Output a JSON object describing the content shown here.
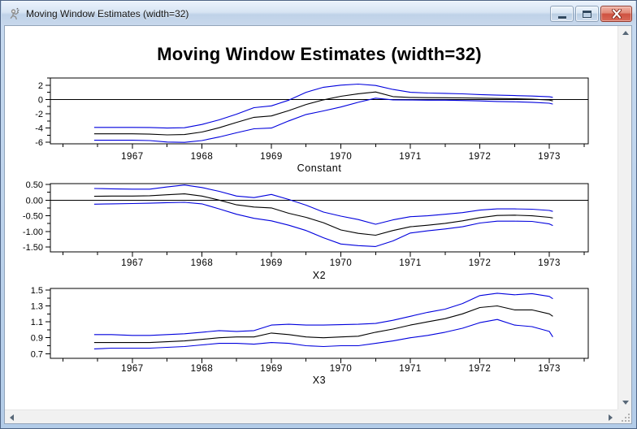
{
  "window": {
    "title": "Moving Window Estimates (width=32)",
    "icon": "app-person-icon",
    "buttons": [
      "minimize",
      "maximize",
      "close"
    ]
  },
  "page": {
    "title": "Moving Window Estimates (width=32)"
  },
  "colors": {
    "band_line": "#0000dd",
    "estimate_line": "#000000",
    "frame_blue": "#bdd6f0"
  },
  "chart_data": [
    {
      "type": "line",
      "xlabel": "Constant",
      "x_range": [
        1965.82,
        1973.56
      ],
      "y_range": [
        -6.2,
        3.0
      ],
      "x_major_ticks": [
        1967,
        1968,
        1969,
        1970,
        1971,
        1972,
        1973
      ],
      "x_minor_step": 0.5,
      "y_tick_values": [
        2,
        0,
        -2,
        -4,
        -6
      ],
      "y_tick_labels": [
        "2",
        "0",
        "-2",
        "-4",
        "-6"
      ],
      "y_minor_step": 1,
      "ref_line": 0,
      "legend": "none",
      "grid": false,
      "x": [
        1966.45,
        1966.7,
        1967,
        1967.25,
        1967.5,
        1967.75,
        1968,
        1968.25,
        1968.5,
        1968.75,
        1969,
        1969.25,
        1969.5,
        1969.75,
        1970,
        1970.25,
        1970.5,
        1970.75,
        1971,
        1971.25,
        1971.5,
        1971.75,
        1972,
        1972.25,
        1972.5,
        1972.75,
        1973,
        1973.05
      ],
      "series": [
        {
          "name": "upper-band",
          "color": "#0000dd",
          "values": [
            -3.9,
            -3.9,
            -3.9,
            -3.92,
            -4.0,
            -3.95,
            -3.5,
            -2.85,
            -2.05,
            -1.15,
            -0.9,
            -0.1,
            1.0,
            1.7,
            2.0,
            2.15,
            1.95,
            1.4,
            1.0,
            0.9,
            0.85,
            0.78,
            0.68,
            0.6,
            0.55,
            0.48,
            0.38,
            0.3
          ]
        },
        {
          "name": "estimate",
          "color": "#000000",
          "values": [
            -4.8,
            -4.8,
            -4.8,
            -4.85,
            -4.95,
            -4.9,
            -4.55,
            -3.95,
            -3.2,
            -2.5,
            -2.3,
            -1.55,
            -0.7,
            -0.05,
            0.45,
            0.8,
            1.05,
            0.4,
            0.28,
            0.25,
            0.24,
            0.22,
            0.18,
            0.14,
            0.1,
            0.04,
            -0.08,
            -0.2
          ]
        },
        {
          "name": "lower-band",
          "color": "#0000dd",
          "values": [
            -5.7,
            -5.7,
            -5.7,
            -5.75,
            -5.95,
            -6.0,
            -5.75,
            -5.25,
            -4.65,
            -4.1,
            -4.0,
            -3.0,
            -2.1,
            -1.6,
            -1.05,
            -0.4,
            0.18,
            -0.05,
            -0.08,
            -0.1,
            -0.1,
            -0.15,
            -0.2,
            -0.28,
            -0.33,
            -0.4,
            -0.52,
            -0.65
          ]
        }
      ]
    },
    {
      "type": "line",
      "xlabel": "X2",
      "x_range": [
        1965.82,
        1973.56
      ],
      "y_range": [
        -1.65,
        0.525
      ],
      "x_major_ticks": [
        1967,
        1968,
        1969,
        1970,
        1971,
        1972,
        1973
      ],
      "x_minor_step": 0.5,
      "y_tick_values": [
        0.5,
        0,
        -0.5,
        -1,
        -1.5
      ],
      "y_tick_labels": [
        "0.50",
        "0.00",
        "-0.50",
        "-1.00",
        "-1.50"
      ],
      "y_minor_step": 0.25,
      "ref_line": 0,
      "legend": "none",
      "grid": false,
      "x": [
        1966.45,
        1966.7,
        1967,
        1967.25,
        1967.5,
        1967.75,
        1968,
        1968.25,
        1968.5,
        1968.75,
        1969,
        1969.25,
        1969.5,
        1969.75,
        1970,
        1970.25,
        1970.5,
        1970.75,
        1971,
        1971.25,
        1971.5,
        1971.75,
        1972,
        1972.25,
        1972.5,
        1972.75,
        1973,
        1973.05
      ],
      "series": [
        {
          "name": "upper-band",
          "color": "#0000dd",
          "values": [
            0.37,
            0.36,
            0.35,
            0.35,
            0.42,
            0.48,
            0.4,
            0.28,
            0.13,
            0.08,
            0.18,
            0.02,
            -0.16,
            -0.38,
            -0.51,
            -0.62,
            -0.77,
            -0.63,
            -0.53,
            -0.5,
            -0.45,
            -0.4,
            -0.32,
            -0.28,
            -0.28,
            -0.29,
            -0.33,
            -0.36
          ]
        },
        {
          "name": "estimate",
          "color": "#000000",
          "values": [
            0.12,
            0.13,
            0.13,
            0.14,
            0.17,
            0.2,
            0.13,
            0.0,
            -0.15,
            -0.22,
            -0.25,
            -0.42,
            -0.55,
            -0.72,
            -0.95,
            -1.06,
            -1.12,
            -0.97,
            -0.85,
            -0.8,
            -0.74,
            -0.66,
            -0.56,
            -0.49,
            -0.48,
            -0.5,
            -0.55,
            -0.57
          ]
        },
        {
          "name": "lower-band",
          "color": "#0000dd",
          "values": [
            -0.13,
            -0.12,
            -0.11,
            -0.1,
            -0.08,
            -0.07,
            -0.12,
            -0.28,
            -0.45,
            -0.58,
            -0.66,
            -0.8,
            -0.97,
            -1.2,
            -1.4,
            -1.45,
            -1.48,
            -1.3,
            -1.05,
            -0.98,
            -0.92,
            -0.85,
            -0.73,
            -0.67,
            -0.67,
            -0.68,
            -0.76,
            -0.81
          ]
        }
      ]
    },
    {
      "type": "line",
      "xlabel": "X3",
      "x_range": [
        1965.82,
        1973.56
      ],
      "y_range": [
        0.642,
        1.52
      ],
      "x_major_ticks": [
        1967,
        1968,
        1969,
        1970,
        1971,
        1972,
        1973
      ],
      "x_minor_step": 0.5,
      "y_tick_values": [
        1.5,
        1.3,
        1.1,
        0.9,
        0.7
      ],
      "y_tick_labels": [
        "1.5",
        "1.3",
        "1.1",
        "0.9",
        "0.7"
      ],
      "y_minor_step": 0.1,
      "ref_line": null,
      "legend": "none",
      "grid": false,
      "x": [
        1966.45,
        1966.7,
        1967,
        1967.25,
        1967.5,
        1967.75,
        1968,
        1968.25,
        1968.5,
        1968.75,
        1969,
        1969.25,
        1969.5,
        1969.75,
        1970,
        1970.25,
        1970.5,
        1970.75,
        1971,
        1971.25,
        1971.5,
        1971.75,
        1972,
        1972.25,
        1972.5,
        1972.75,
        1973,
        1973.05
      ],
      "series": [
        {
          "name": "upper-band",
          "color": "#0000dd",
          "values": [
            0.94,
            0.94,
            0.93,
            0.93,
            0.94,
            0.95,
            0.97,
            0.99,
            0.98,
            0.99,
            1.06,
            1.07,
            1.06,
            1.06,
            1.065,
            1.07,
            1.08,
            1.12,
            1.17,
            1.22,
            1.26,
            1.33,
            1.43,
            1.46,
            1.44,
            1.455,
            1.42,
            1.39
          ]
        },
        {
          "name": "estimate",
          "color": "#000000",
          "values": [
            0.84,
            0.84,
            0.84,
            0.84,
            0.85,
            0.86,
            0.88,
            0.9,
            0.91,
            0.91,
            0.96,
            0.94,
            0.91,
            0.9,
            0.91,
            0.92,
            0.97,
            1.01,
            1.06,
            1.1,
            1.14,
            1.2,
            1.28,
            1.3,
            1.25,
            1.25,
            1.2,
            1.17
          ]
        },
        {
          "name": "lower-band",
          "color": "#0000dd",
          "values": [
            0.76,
            0.77,
            0.77,
            0.77,
            0.78,
            0.79,
            0.81,
            0.83,
            0.83,
            0.82,
            0.84,
            0.83,
            0.8,
            0.79,
            0.8,
            0.8,
            0.83,
            0.86,
            0.9,
            0.93,
            0.97,
            1.02,
            1.09,
            1.13,
            1.06,
            1.04,
            0.98,
            0.91
          ]
        }
      ]
    }
  ]
}
